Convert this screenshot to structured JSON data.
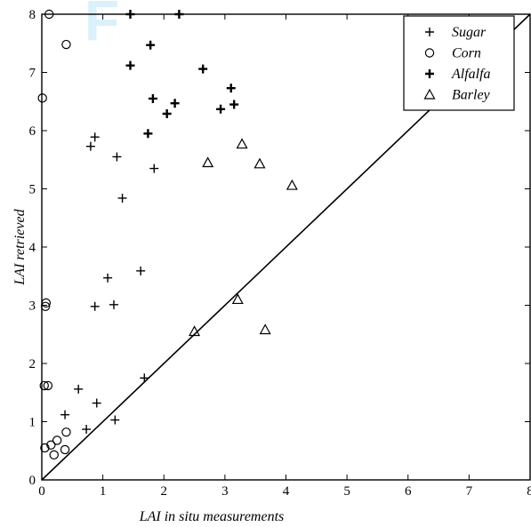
{
  "chart_data": {
    "type": "scatter",
    "title": "",
    "xlabel": "LAI  in situ measurements",
    "ylabel": "LAI  retrieved",
    "xlim": [
      0,
      8
    ],
    "ylim": [
      0,
      8
    ],
    "xticks": [
      "0",
      "1",
      "2",
      "3",
      "4",
      "5",
      "6",
      "7",
      "8"
    ],
    "yticks": [
      "0",
      "1",
      "2",
      "3",
      "4",
      "5",
      "6",
      "7",
      "8"
    ],
    "grid": false,
    "legend_position": "top-right",
    "reference_line": "1:1",
    "series": [
      {
        "name": "Sugar",
        "marker": "plus",
        "points": [
          [
            0.38,
            1.12
          ],
          [
            0.6,
            1.56
          ],
          [
            0.73,
            0.87
          ],
          [
            0.9,
            1.32
          ],
          [
            1.2,
            1.03
          ],
          [
            1.68,
            1.75
          ],
          [
            0.87,
            2.98
          ],
          [
            1.18,
            3.01
          ],
          [
            1.08,
            3.47
          ],
          [
            1.62,
            3.59
          ],
          [
            1.32,
            4.84
          ],
          [
            1.84,
            5.35
          ],
          [
            0.8,
            5.73
          ],
          [
            0.87,
            5.89
          ],
          [
            1.23,
            5.55
          ]
        ]
      },
      {
        "name": "Corn",
        "marker": "circle",
        "points": [
          [
            0.12,
            8.0
          ],
          [
            0.4,
            7.48
          ],
          [
            0.01,
            6.56
          ],
          [
            0.07,
            3.04
          ],
          [
            0.06,
            2.98
          ],
          [
            0.04,
            1.62
          ],
          [
            0.1,
            1.62
          ],
          [
            0.4,
            0.82
          ],
          [
            0.25,
            0.68
          ],
          [
            0.15,
            0.6
          ],
          [
            0.05,
            0.55
          ],
          [
            0.2,
            0.43
          ],
          [
            0.38,
            0.52
          ]
        ]
      },
      {
        "name": "Alfalfa",
        "marker": "plus-bold",
        "points": [
          [
            1.45,
            8.0
          ],
          [
            2.25,
            8.0
          ],
          [
            1.78,
            7.47
          ],
          [
            1.45,
            7.12
          ],
          [
            2.64,
            7.06
          ],
          [
            3.1,
            6.73
          ],
          [
            1.82,
            6.55
          ],
          [
            2.18,
            6.47
          ],
          [
            3.15,
            6.45
          ],
          [
            2.93,
            6.37
          ],
          [
            2.05,
            6.29
          ],
          [
            1.74,
            5.95
          ]
        ]
      },
      {
        "name": "Barley",
        "marker": "triangle",
        "points": [
          [
            3.28,
            5.77
          ],
          [
            2.72,
            5.45
          ],
          [
            3.57,
            5.43
          ],
          [
            4.1,
            5.06
          ],
          [
            3.21,
            3.1
          ],
          [
            2.5,
            2.55
          ],
          [
            3.66,
            2.58
          ]
        ]
      }
    ]
  },
  "watermark": {
    "text": "F"
  }
}
